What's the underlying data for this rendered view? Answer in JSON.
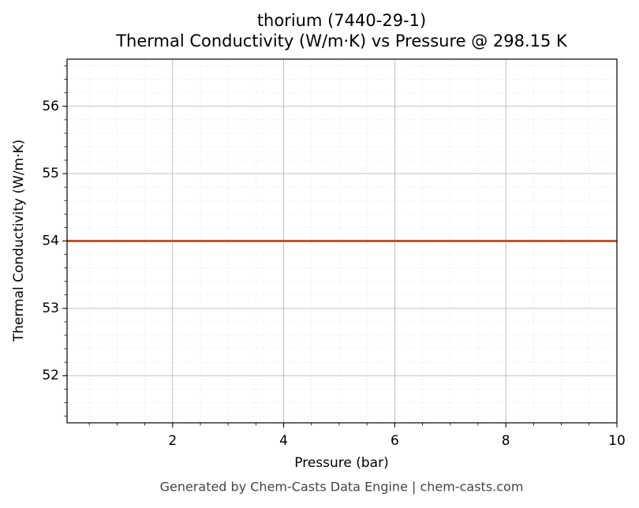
{
  "chart_data": {
    "type": "line",
    "title": "thorium (7440-29-1)",
    "subtitle": "Thermal Conductivity (W/m·K) vs Pressure @ 298.15 K",
    "x_label": "Pressure (bar)",
    "y_label": "Thermal Conductivity (W/m·K)",
    "footer": "Generated by Chem-Casts Data Engine | chem-casts.com",
    "x": [
      0.1,
      10
    ],
    "series": [
      {
        "name": "thorium",
        "color": "#c8532a",
        "values": [
          54,
          54
        ]
      }
    ],
    "xlim": [
      0.1,
      10
    ],
    "ylim": [
      51.3,
      56.7
    ],
    "xticks": [
      2,
      4,
      6,
      8,
      10
    ],
    "yticks": [
      52,
      53,
      54,
      55,
      56
    ],
    "x_minor_step": 0.5,
    "y_minor_step": 0.2,
    "grid": true,
    "minor_grid": true,
    "legend": false
  }
}
